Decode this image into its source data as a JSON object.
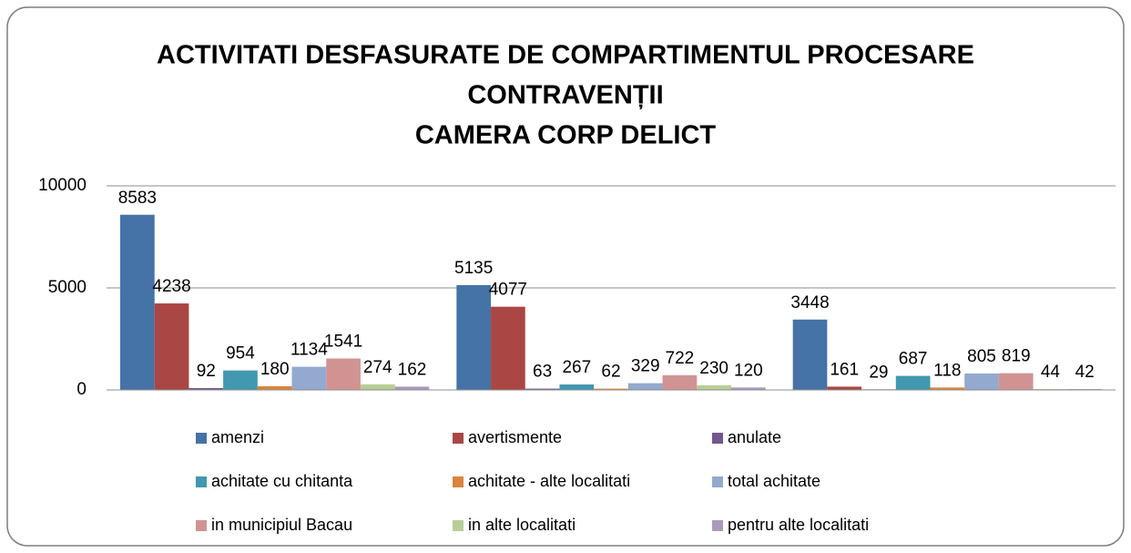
{
  "chart_data": {
    "type": "bar",
    "title": [
      "ACTIVITATI DESFASURATE DE COMPARTIMENTUL  PROCESARE",
      "CONTRAVENȚII",
      "CAMERA CORP DELICT"
    ],
    "categories": [
      null,
      null,
      null
    ],
    "series": [
      {
        "name": "amenzi",
        "color": "#4572a7",
        "values": [
          8583,
          5135,
          3448
        ]
      },
      {
        "name": "avertismente",
        "color": "#aa4643",
        "values": [
          4238,
          4077,
          161
        ]
      },
      {
        "name": "anulate",
        "color": "#71588f",
        "values": [
          92,
          63,
          29
        ]
      },
      {
        "name": "achitate cu chitanta",
        "color": "#4198af",
        "values": [
          954,
          267,
          687
        ]
      },
      {
        "name": "achitate - alte localitati",
        "color": "#db843d",
        "values": [
          180,
          62,
          118
        ]
      },
      {
        "name": "total achitate",
        "color": "#93a9cf",
        "values": [
          1134,
          329,
          805
        ]
      },
      {
        "name": "in municipiul Bacau",
        "color": "#d19392",
        "values": [
          1541,
          722,
          819
        ]
      },
      {
        "name": "in alte localitati",
        "color": "#b9cd96",
        "values": [
          274,
          230,
          44
        ]
      },
      {
        "name": "pentru alte localitati",
        "color": "#a99bbd",
        "values": [
          162,
          120,
          42
        ]
      }
    ],
    "ylim": [
      0,
      10000
    ],
    "yticks": [
      0,
      5000,
      10000
    ],
    "grid": true,
    "legend": "bottom",
    "data_labels": true
  }
}
